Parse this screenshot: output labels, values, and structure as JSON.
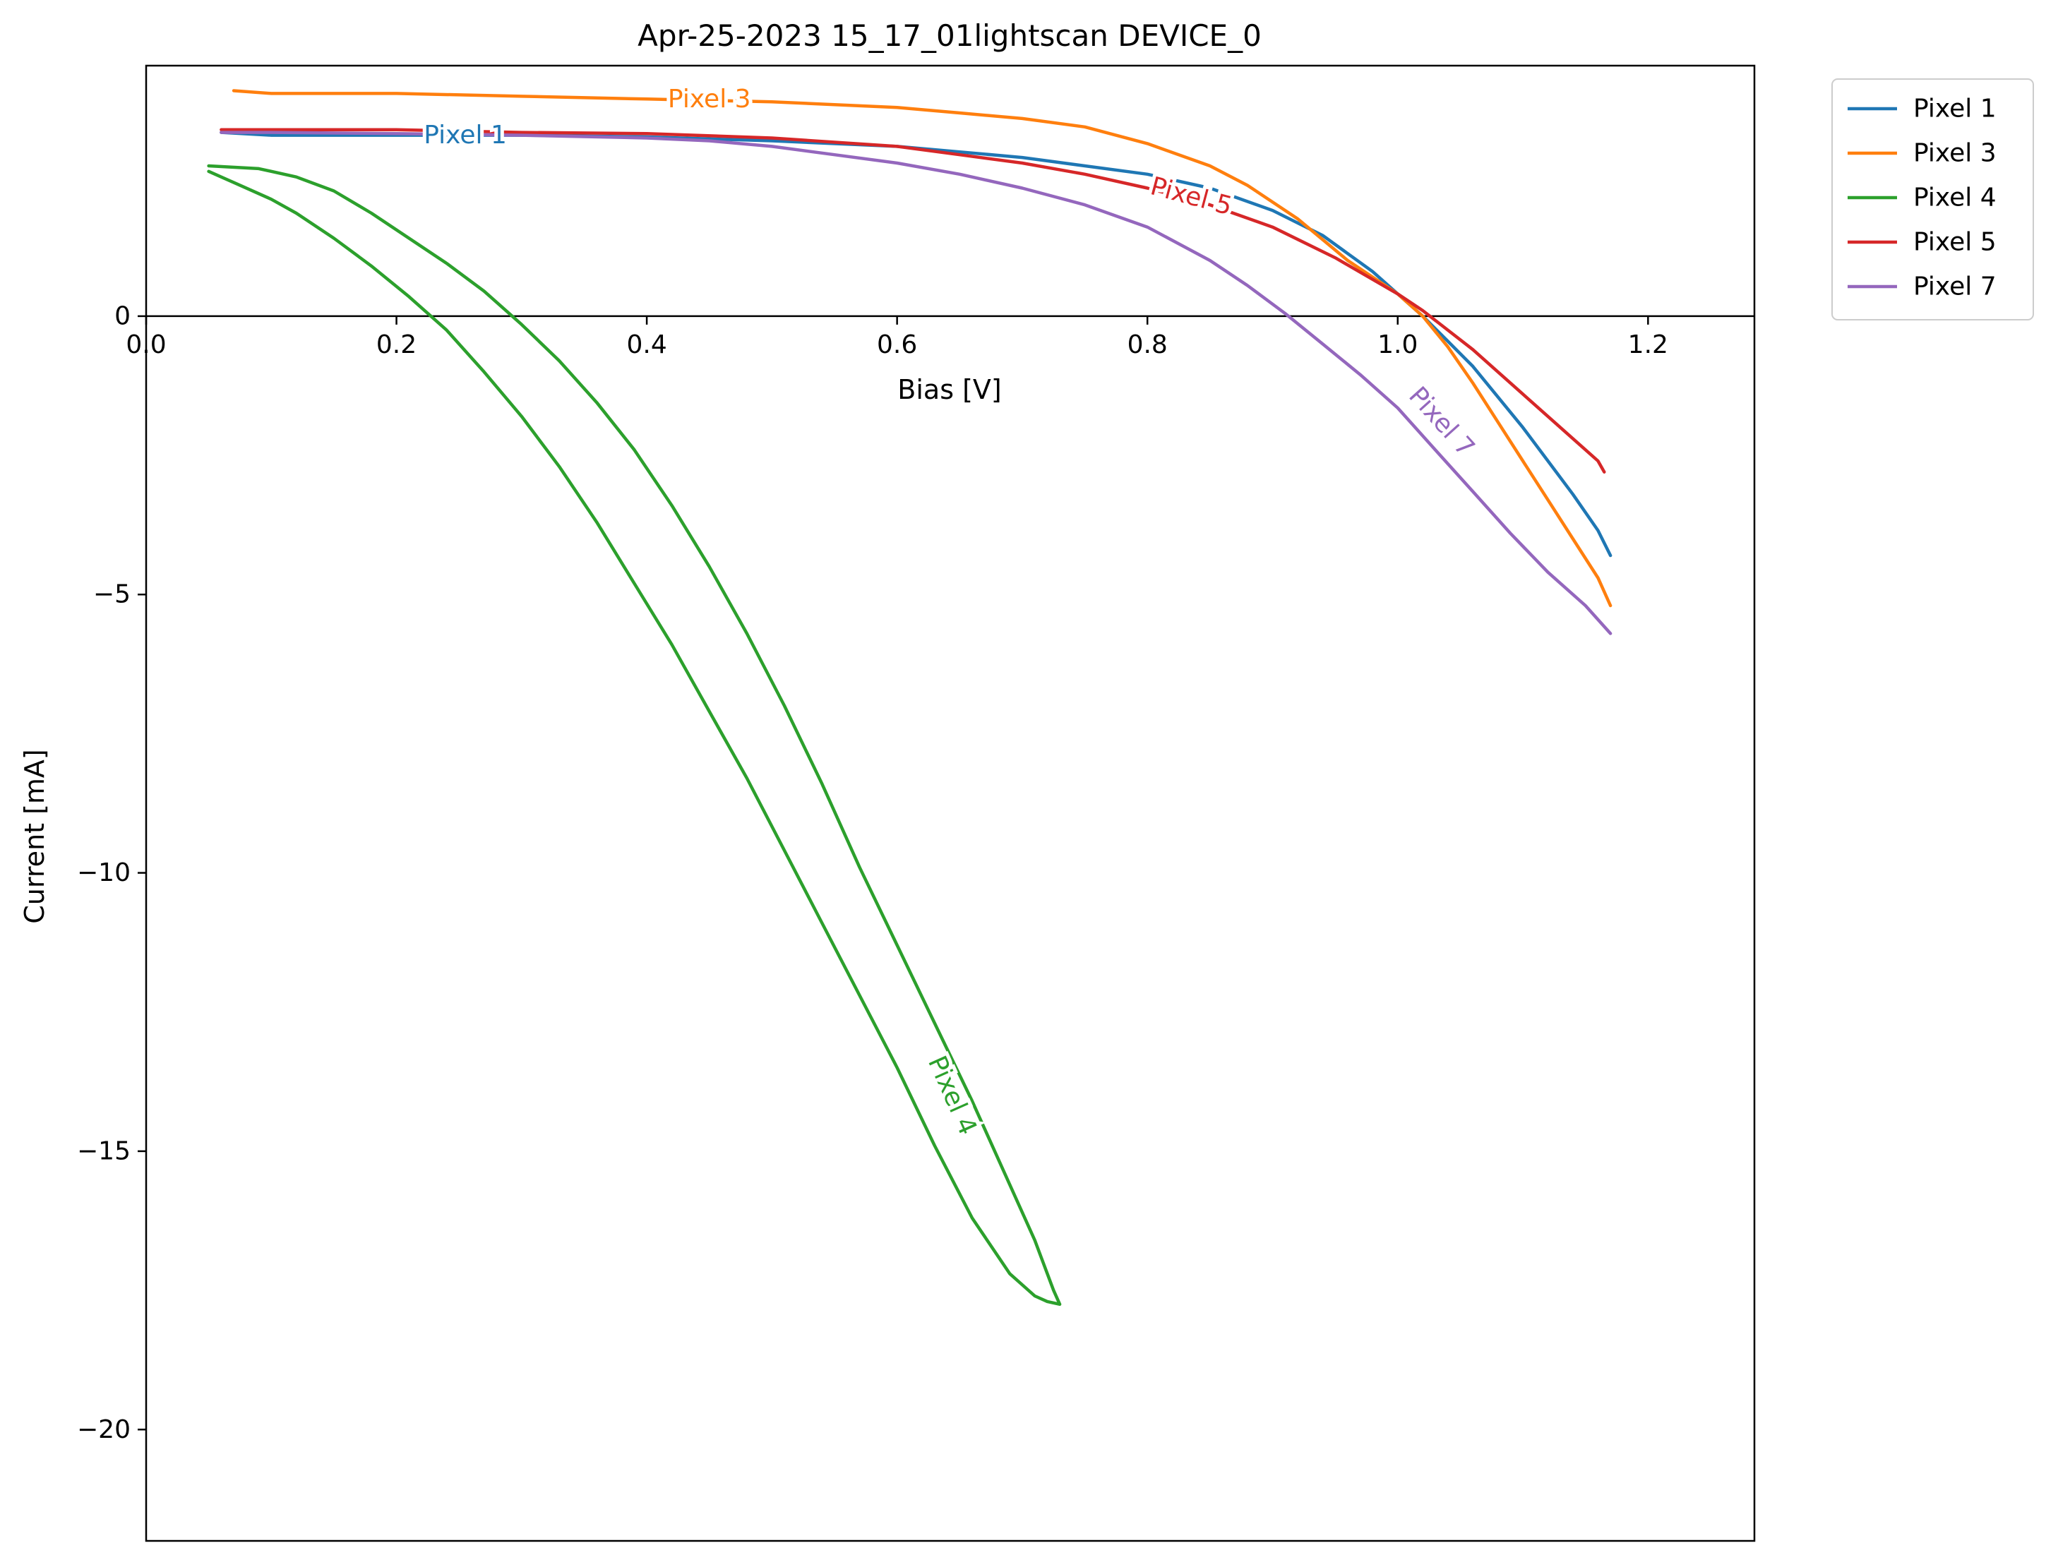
{
  "chart_data": {
    "type": "line",
    "title": "Apr-25-2023 15_17_01lightscan DEVICE_0",
    "xlabel": "Bias [V]",
    "ylabel": "Current [mA]",
    "xlim": [
      0.0,
      1.285
    ],
    "ylim": [
      -22.0,
      4.5
    ],
    "xticks": [
      0.0,
      0.2,
      0.4,
      0.6,
      0.8,
      1.0,
      1.2
    ],
    "xtick_labels": [
      "0.0",
      "0.2",
      "0.4",
      "0.6",
      "0.8",
      "1.0",
      "1.2"
    ],
    "yticks": [
      0,
      -5,
      -10,
      -15,
      -20
    ],
    "ytick_labels": [
      "0",
      "−5",
      "−10",
      "−15",
      "−20"
    ],
    "grid": false,
    "legend_position": "outside-top-right",
    "series": [
      {
        "name": "Pixel 1",
        "color": "#1f77b4",
        "inline_label": {
          "text": "Pixel 1",
          "x": 0.255,
          "y": 3.25,
          "angle": 0
        },
        "x": [
          0.06,
          0.1,
          0.2,
          0.3,
          0.4,
          0.5,
          0.6,
          0.65,
          0.7,
          0.75,
          0.8,
          0.85,
          0.9,
          0.94,
          0.98,
          1.0,
          1.02,
          1.04,
          1.06,
          1.08,
          1.1,
          1.12,
          1.14,
          1.16,
          1.17
        ],
        "y": [
          3.3,
          3.25,
          3.25,
          3.25,
          3.22,
          3.15,
          3.05,
          2.95,
          2.85,
          2.7,
          2.55,
          2.3,
          1.9,
          1.45,
          0.8,
          0.4,
          0.0,
          -0.45,
          -0.9,
          -1.45,
          -2.0,
          -2.6,
          -3.2,
          -3.85,
          -4.3
        ]
      },
      {
        "name": "Pixel 3",
        "color": "#ff7f0e",
        "inline_label": {
          "text": "Pixel 3",
          "x": 0.45,
          "y": 3.9,
          "angle": 0
        },
        "x": [
          0.07,
          0.1,
          0.2,
          0.3,
          0.4,
          0.5,
          0.6,
          0.65,
          0.7,
          0.75,
          0.8,
          0.85,
          0.88,
          0.92,
          0.96,
          1.0,
          1.02,
          1.04,
          1.06,
          1.08,
          1.1,
          1.12,
          1.14,
          1.16,
          1.17
        ],
        "y": [
          4.05,
          4.0,
          4.0,
          3.95,
          3.9,
          3.85,
          3.75,
          3.65,
          3.55,
          3.4,
          3.1,
          2.7,
          2.35,
          1.75,
          1.0,
          0.4,
          0.0,
          -0.55,
          -1.2,
          -1.9,
          -2.6,
          -3.3,
          -4.0,
          -4.7,
          -5.2
        ]
      },
      {
        "name": "Pixel 4",
        "color": "#2ca02c",
        "inline_label": {
          "text": "Pixel 4",
          "x": 0.644,
          "y": -14.0,
          "angle": 66
        },
        "x": [
          0.05,
          0.07,
          0.1,
          0.12,
          0.15,
          0.18,
          0.21,
          0.24,
          0.27,
          0.3,
          0.33,
          0.36,
          0.39,
          0.42,
          0.45,
          0.48,
          0.51,
          0.54,
          0.57,
          0.6,
          0.63,
          0.66,
          0.69,
          0.71,
          0.72,
          0.73,
          0.725,
          0.71,
          0.69,
          0.66,
          0.63,
          0.6,
          0.57,
          0.54,
          0.51,
          0.48,
          0.45,
          0.42,
          0.39,
          0.36,
          0.33,
          0.3,
          0.27,
          0.24,
          0.21,
          0.18,
          0.15,
          0.12,
          0.09,
          0.05
        ],
        "y": [
          2.6,
          2.4,
          2.1,
          1.85,
          1.4,
          0.9,
          0.35,
          -0.25,
          -1.0,
          -1.8,
          -2.7,
          -3.7,
          -4.8,
          -5.9,
          -7.1,
          -8.3,
          -9.6,
          -10.9,
          -12.2,
          -13.5,
          -14.9,
          -16.2,
          -17.2,
          -17.6,
          -17.7,
          -17.75,
          -17.5,
          -16.6,
          -15.6,
          -14.1,
          -12.7,
          -11.3,
          -9.9,
          -8.4,
          -7.0,
          -5.7,
          -4.5,
          -3.4,
          -2.4,
          -1.55,
          -0.8,
          -0.15,
          0.45,
          0.95,
          1.4,
          1.85,
          2.25,
          2.5,
          2.65,
          2.7
        ]
      },
      {
        "name": "Pixel 5",
        "color": "#d62728",
        "inline_label": {
          "text": "Pixel 5",
          "x": 0.835,
          "y": 2.15,
          "angle": 15
        },
        "x": [
          0.06,
          0.1,
          0.15,
          0.2,
          0.3,
          0.4,
          0.5,
          0.6,
          0.65,
          0.7,
          0.75,
          0.8,
          0.85,
          0.9,
          0.95,
          1.0,
          1.02,
          1.04,
          1.06,
          1.08,
          1.1,
          1.12,
          1.14,
          1.16,
          1.165
        ],
        "y": [
          3.35,
          3.35,
          3.35,
          3.35,
          3.3,
          3.28,
          3.2,
          3.05,
          2.9,
          2.75,
          2.55,
          2.3,
          2.0,
          1.6,
          1.05,
          0.4,
          0.1,
          -0.25,
          -0.6,
          -1.0,
          -1.4,
          -1.8,
          -2.2,
          -2.6,
          -2.8
        ]
      },
      {
        "name": "Pixel 7",
        "color": "#9467bd",
        "inline_label": {
          "text": "Pixel 7",
          "x": 1.035,
          "y": -1.9,
          "angle": 48
        },
        "x": [
          0.06,
          0.1,
          0.2,
          0.3,
          0.4,
          0.45,
          0.5,
          0.55,
          0.6,
          0.65,
          0.7,
          0.75,
          0.8,
          0.85,
          0.88,
          0.91,
          0.94,
          0.97,
          1.0,
          1.03,
          1.06,
          1.09,
          1.12,
          1.15,
          1.17
        ],
        "y": [
          3.3,
          3.3,
          3.28,
          3.25,
          3.2,
          3.15,
          3.05,
          2.9,
          2.75,
          2.55,
          2.3,
          2.0,
          1.6,
          1.0,
          0.55,
          0.05,
          -0.5,
          -1.05,
          -1.65,
          -2.4,
          -3.15,
          -3.9,
          -4.6,
          -5.2,
          -5.7
        ]
      }
    ]
  }
}
